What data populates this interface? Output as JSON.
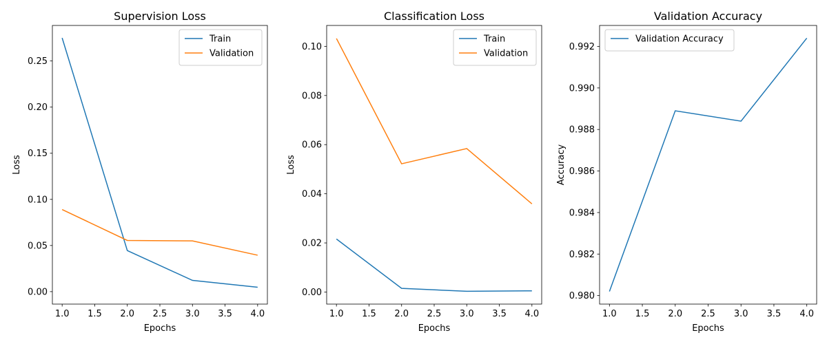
{
  "chart_data": [
    {
      "type": "line",
      "title": "Supervision Loss",
      "xlabel": "Epochs",
      "ylabel": "Loss",
      "x": [
        1.0,
        2.0,
        3.0,
        4.0
      ],
      "xlim": [
        0.85,
        4.15
      ],
      "ylim": [
        -0.0135,
        0.2885
      ],
      "xticks": [
        "1.0",
        "1.5",
        "2.0",
        "2.5",
        "3.0",
        "3.5",
        "4.0"
      ],
      "yticks": [
        "0.00",
        "0.05",
        "0.10",
        "0.15",
        "0.20",
        "0.25"
      ],
      "legend": "top-right",
      "grid": false,
      "series": [
        {
          "name": "Train",
          "color": "#1f77b4",
          "values": [
            0.275,
            0.0445,
            0.0122,
            0.0048
          ]
        },
        {
          "name": "Validation",
          "color": "#ff7f0e",
          "values": [
            0.089,
            0.0555,
            0.055,
            0.0395
          ]
        }
      ]
    },
    {
      "type": "line",
      "title": "Classification Loss",
      "xlabel": "Epochs",
      "ylabel": "Loss",
      "x": [
        1.0,
        2.0,
        3.0,
        4.0
      ],
      "xlim": [
        0.85,
        4.15
      ],
      "ylim": [
        -0.0049,
        0.1085
      ],
      "xticks": [
        "1.0",
        "1.5",
        "2.0",
        "2.5",
        "3.0",
        "3.5",
        "4.0"
      ],
      "yticks": [
        "0.00",
        "0.02",
        "0.04",
        "0.06",
        "0.08",
        "0.10"
      ],
      "legend": "top-right",
      "grid": false,
      "series": [
        {
          "name": "Train",
          "color": "#1f77b4",
          "values": [
            0.0216,
            0.0015,
            0.0003,
            0.0005
          ]
        },
        {
          "name": "Validation",
          "color": "#ff7f0e",
          "values": [
            0.1032,
            0.0522,
            0.0584,
            0.0359
          ]
        }
      ]
    },
    {
      "type": "line",
      "title": "Validation Accuracy",
      "xlabel": "Epochs",
      "ylabel": "Accuracy",
      "x": [
        1.0,
        2.0,
        3.0,
        4.0
      ],
      "xlim": [
        0.85,
        4.15
      ],
      "ylim": [
        0.97959,
        0.99301
      ],
      "xticks": [
        "1.0",
        "1.5",
        "2.0",
        "2.5",
        "3.0",
        "3.5",
        "4.0"
      ],
      "yticks": [
        "0.980",
        "0.982",
        "0.984",
        "0.986",
        "0.988",
        "0.990",
        "0.992"
      ],
      "legend": "top-left",
      "grid": false,
      "series": [
        {
          "name": "Validation Accuracy",
          "color": "#1f77b4",
          "values": [
            0.9802,
            0.9889,
            0.9884,
            0.9924
          ]
        }
      ]
    }
  ]
}
